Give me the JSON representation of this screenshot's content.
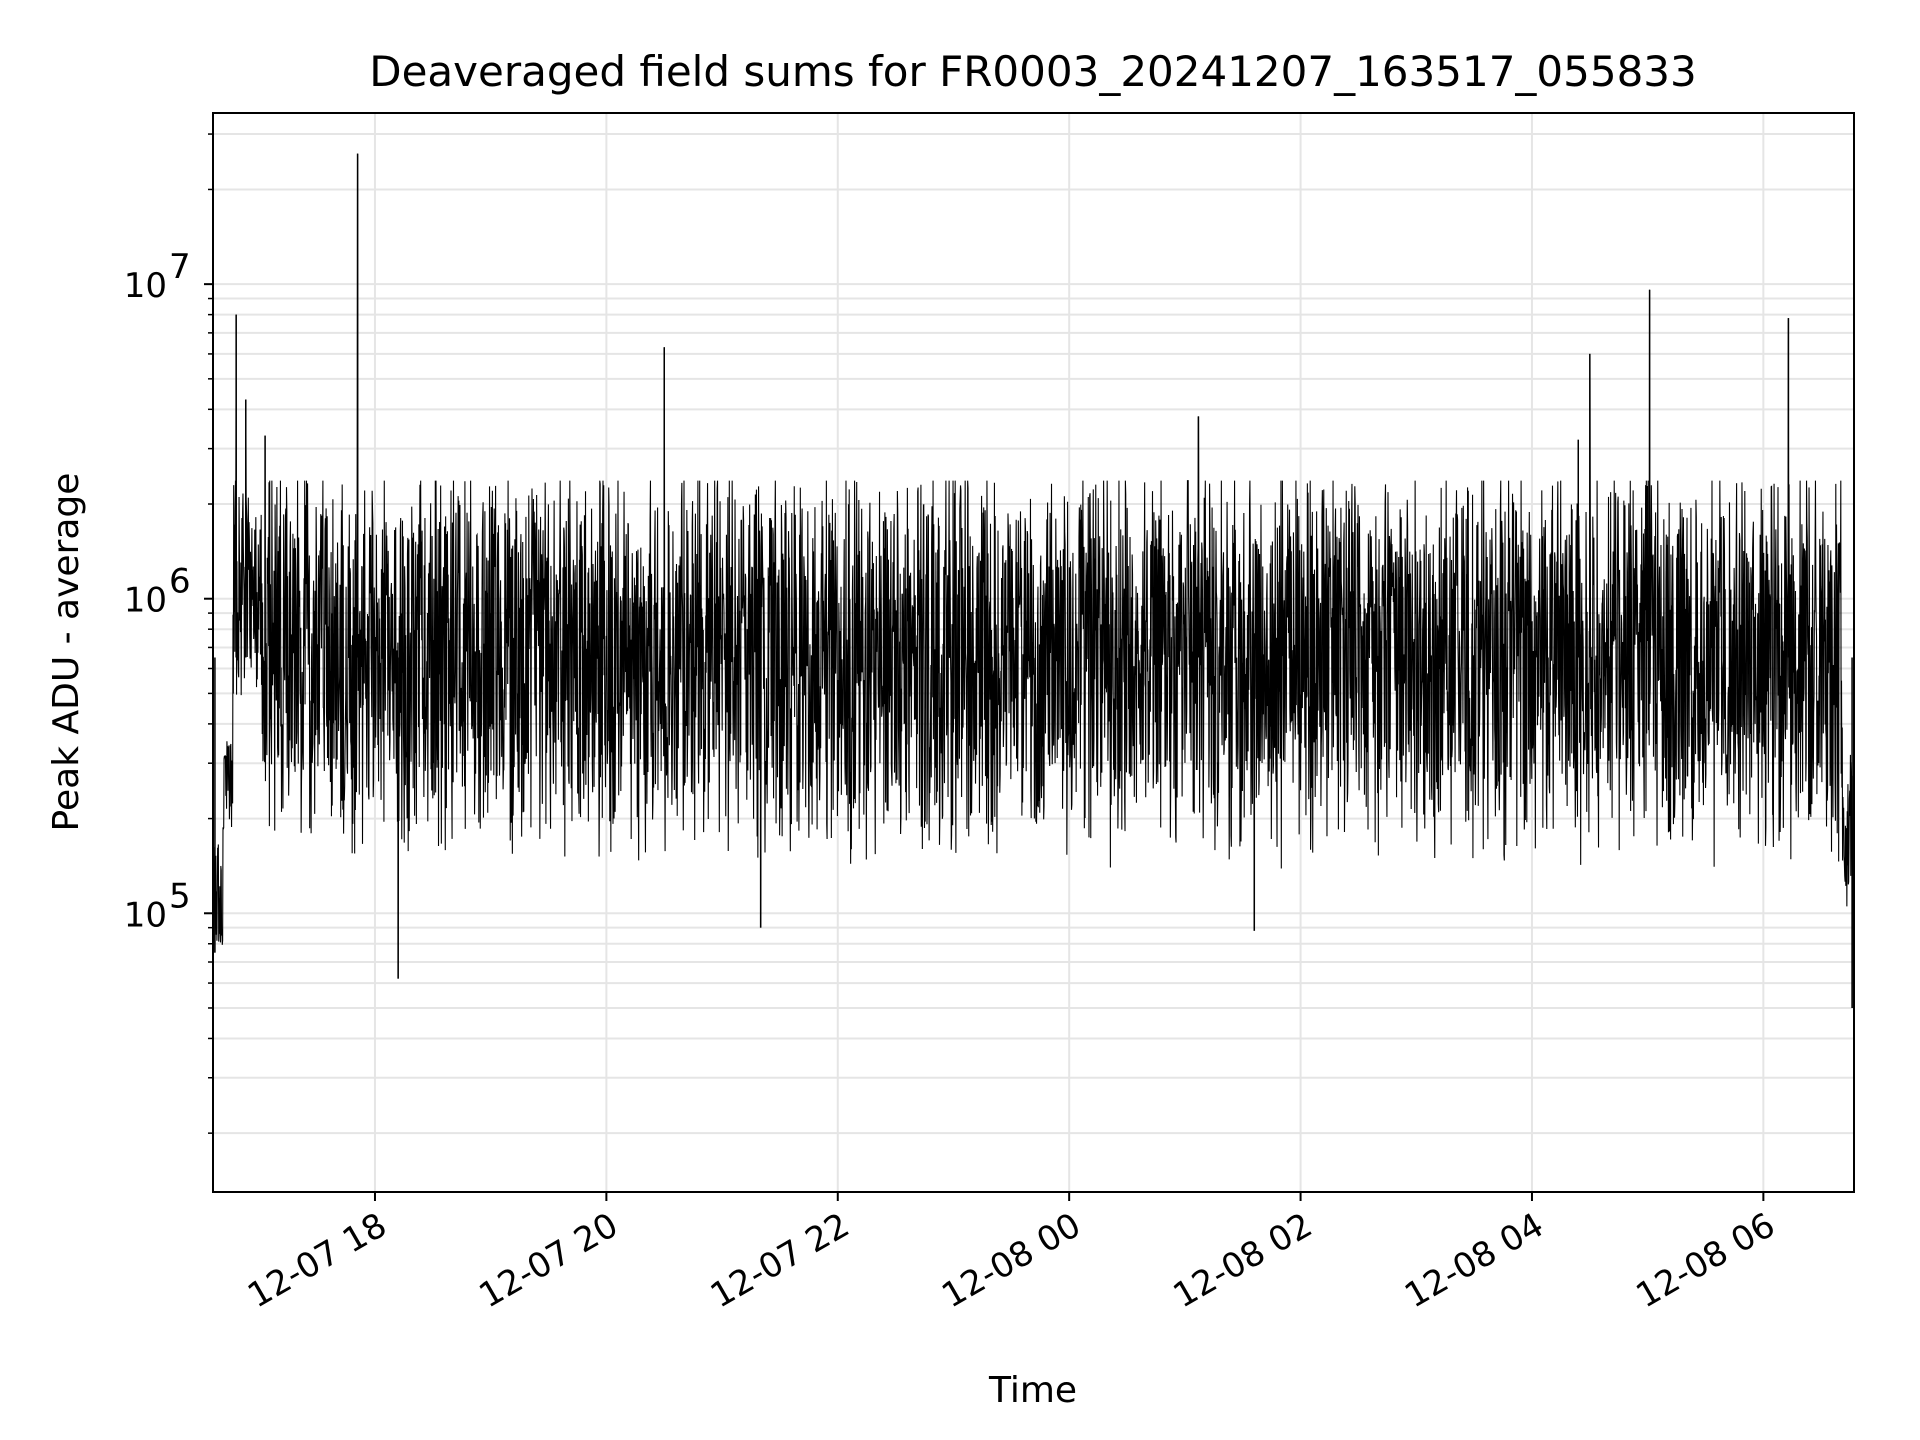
{
  "chart_data": {
    "type": "line",
    "title": "Deaveraged field sums for FR0003_20241207_163517_055833",
    "xlabel": "Time",
    "ylabel": "Peak ADU - average",
    "yscale": "log",
    "ylim": [
      13000,
      35000000
    ],
    "xlim": [
      "2024-12-07 16:36",
      "2024-12-08 06:47"
    ],
    "grid": "on (major and minor, light gray)",
    "line_color": "#000000",
    "grid_color": "#e5e5e5",
    "x_ticks": [
      {
        "time": "2024-12-07 18:00",
        "label": "12-07 18"
      },
      {
        "time": "2024-12-07 20:00",
        "label": "12-07 20"
      },
      {
        "time": "2024-12-07 22:00",
        "label": "12-07 22"
      },
      {
        "time": "2024-12-08 00:00",
        "label": "12-08 00"
      },
      {
        "time": "2024-12-08 02:00",
        "label": "12-08 02"
      },
      {
        "time": "2024-12-08 04:00",
        "label": "12-08 04"
      },
      {
        "time": "2024-12-08 06:00",
        "label": "12-08 06"
      }
    ],
    "y_ticks": [
      {
        "value": 100000,
        "base": "10",
        "exp": "5"
      },
      {
        "value": 1000000,
        "base": "10",
        "exp": "6"
      },
      {
        "value": 10000000,
        "base": "10",
        "exp": "7"
      }
    ],
    "series": [
      {
        "noise_band": {
          "typical_low": 200000,
          "typical_high": 1800000,
          "median": 650000
        },
        "spikes": [
          {
            "time": "2024-12-07 16:48",
            "value": 8000000
          },
          {
            "time": "2024-12-07 16:53",
            "value": 4300000
          },
          {
            "time": "2024-12-07 17:03",
            "value": 3300000
          },
          {
            "time": "2024-12-07 17:51",
            "value": 26000000
          },
          {
            "time": "2024-12-07 20:30",
            "value": 6300000
          },
          {
            "time": "2024-12-08 01:07",
            "value": 3800000
          },
          {
            "time": "2024-12-08 04:24",
            "value": 3200000
          },
          {
            "time": "2024-12-08 04:30",
            "value": 6000000
          },
          {
            "time": "2024-12-08 05:01",
            "value": 9600000
          },
          {
            "time": "2024-12-08 06:13",
            "value": 7800000
          }
        ],
        "dips": [
          {
            "time": "2024-12-07 16:37",
            "value": 75000
          },
          {
            "time": "2024-12-07 18:12",
            "value": 62000
          },
          {
            "time": "2024-12-07 21:20",
            "value": 90000
          },
          {
            "time": "2024-12-08 01:36",
            "value": 88000
          },
          {
            "time": "2024-12-08 06:46",
            "value": 50000
          }
        ]
      }
    ]
  }
}
